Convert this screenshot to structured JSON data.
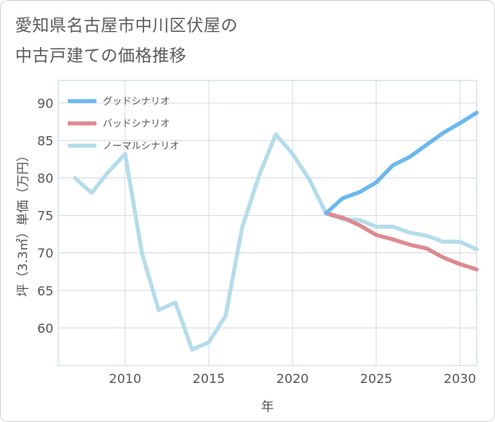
{
  "title_lines": [
    "愛知県名古屋市中川区伏屋の",
    "中古戸建ての価格推移"
  ],
  "chart_data": {
    "type": "line",
    "title": "愛知県名古屋市中川区伏屋の中古戸建ての価格推移",
    "xlabel": "年",
    "ylabel": "坪（3.3㎡）単価（万円）",
    "xlim": [
      2006.0,
      2031.0
    ],
    "ylim": [
      55.0,
      93.0
    ],
    "xticks": [
      2010,
      2015,
      2020,
      2025,
      2030
    ],
    "yticks": [
      60,
      65,
      70,
      75,
      80,
      85,
      90
    ],
    "grid": true,
    "legend_position": "top-left",
    "series": [
      {
        "name": "グッドシナリオ",
        "color": "#6cb8ec",
        "x": [
          2022,
          2023,
          2024,
          2025,
          2026,
          2027,
          2028,
          2029,
          2030,
          2031
        ],
        "y": [
          75.3,
          77.3,
          78.1,
          79.4,
          81.7,
          82.8,
          84.4,
          86.0,
          87.3,
          88.7
        ]
      },
      {
        "name": "バッドシナリオ",
        "color": "#dc8a91",
        "x": [
          2022,
          2023,
          2024,
          2025,
          2026,
          2027,
          2028,
          2029,
          2030,
          2031
        ],
        "y": [
          75.3,
          74.7,
          73.7,
          72.4,
          71.8,
          71.1,
          70.6,
          69.4,
          68.5,
          67.8
        ]
      },
      {
        "name": "ノーマルシナリオ",
        "color": "#b5dcea",
        "x": [
          2007,
          2008,
          2009,
          2010,
          2011,
          2012,
          2013,
          2014,
          2015,
          2016,
          2017,
          2018,
          2019,
          2020,
          2021,
          2022,
          2023,
          2024,
          2025,
          2026,
          2027,
          2028,
          2029,
          2030,
          2031
        ],
        "y": [
          80.0,
          78.0,
          80.8,
          83.2,
          70.0,
          62.4,
          63.4,
          57.1,
          58.1,
          61.6,
          73.5,
          80.3,
          85.8,
          83.2,
          79.8,
          75.3,
          74.5,
          74.4,
          73.5,
          73.5,
          72.7,
          72.3,
          71.5,
          71.5,
          70.5
        ]
      }
    ]
  }
}
